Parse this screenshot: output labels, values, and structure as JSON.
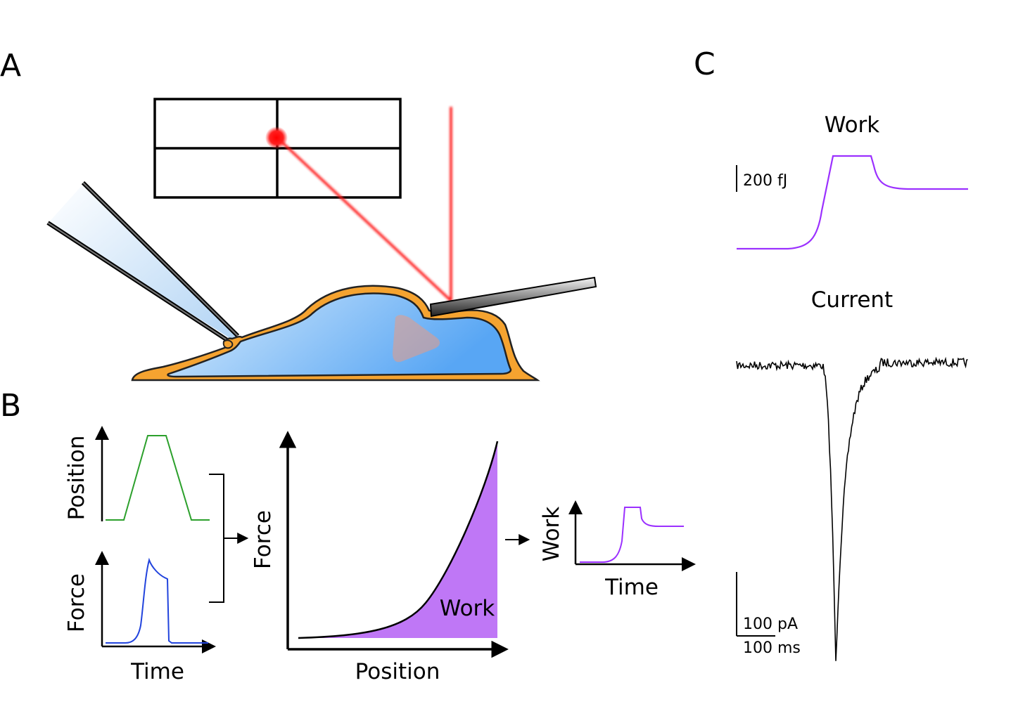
{
  "panels": {
    "a": {
      "letter": "A"
    },
    "b": {
      "letter": "B",
      "position_plot": {
        "ylabel": "Position",
        "color": "#2ca02c"
      },
      "force_plot": {
        "ylabel": "Force",
        "xlabel": "Time",
        "color": "#2244dd"
      },
      "force_position_plot": {
        "ylabel": "Force",
        "xlabel": "Position",
        "area_label": "Work",
        "area_color": "#bf77f6"
      },
      "work_plot": {
        "ylabel": "Work",
        "xlabel": "Time",
        "color": "#9b30ff"
      }
    },
    "c": {
      "letter": "C",
      "work_title": "Work",
      "work_scale": "200 fJ",
      "work_color": "#9b30ff",
      "current_title": "Current",
      "current_scale_y": "100 pA",
      "current_scale_x": "100 ms"
    }
  },
  "colors": {
    "cell_fill_light": "#cfe6fb",
    "cell_fill_dark": "#5aa8f5",
    "cell_membrane": "#f5a330",
    "laser": "#ff1a1a",
    "pipette_fill": "#cfe3f7"
  }
}
